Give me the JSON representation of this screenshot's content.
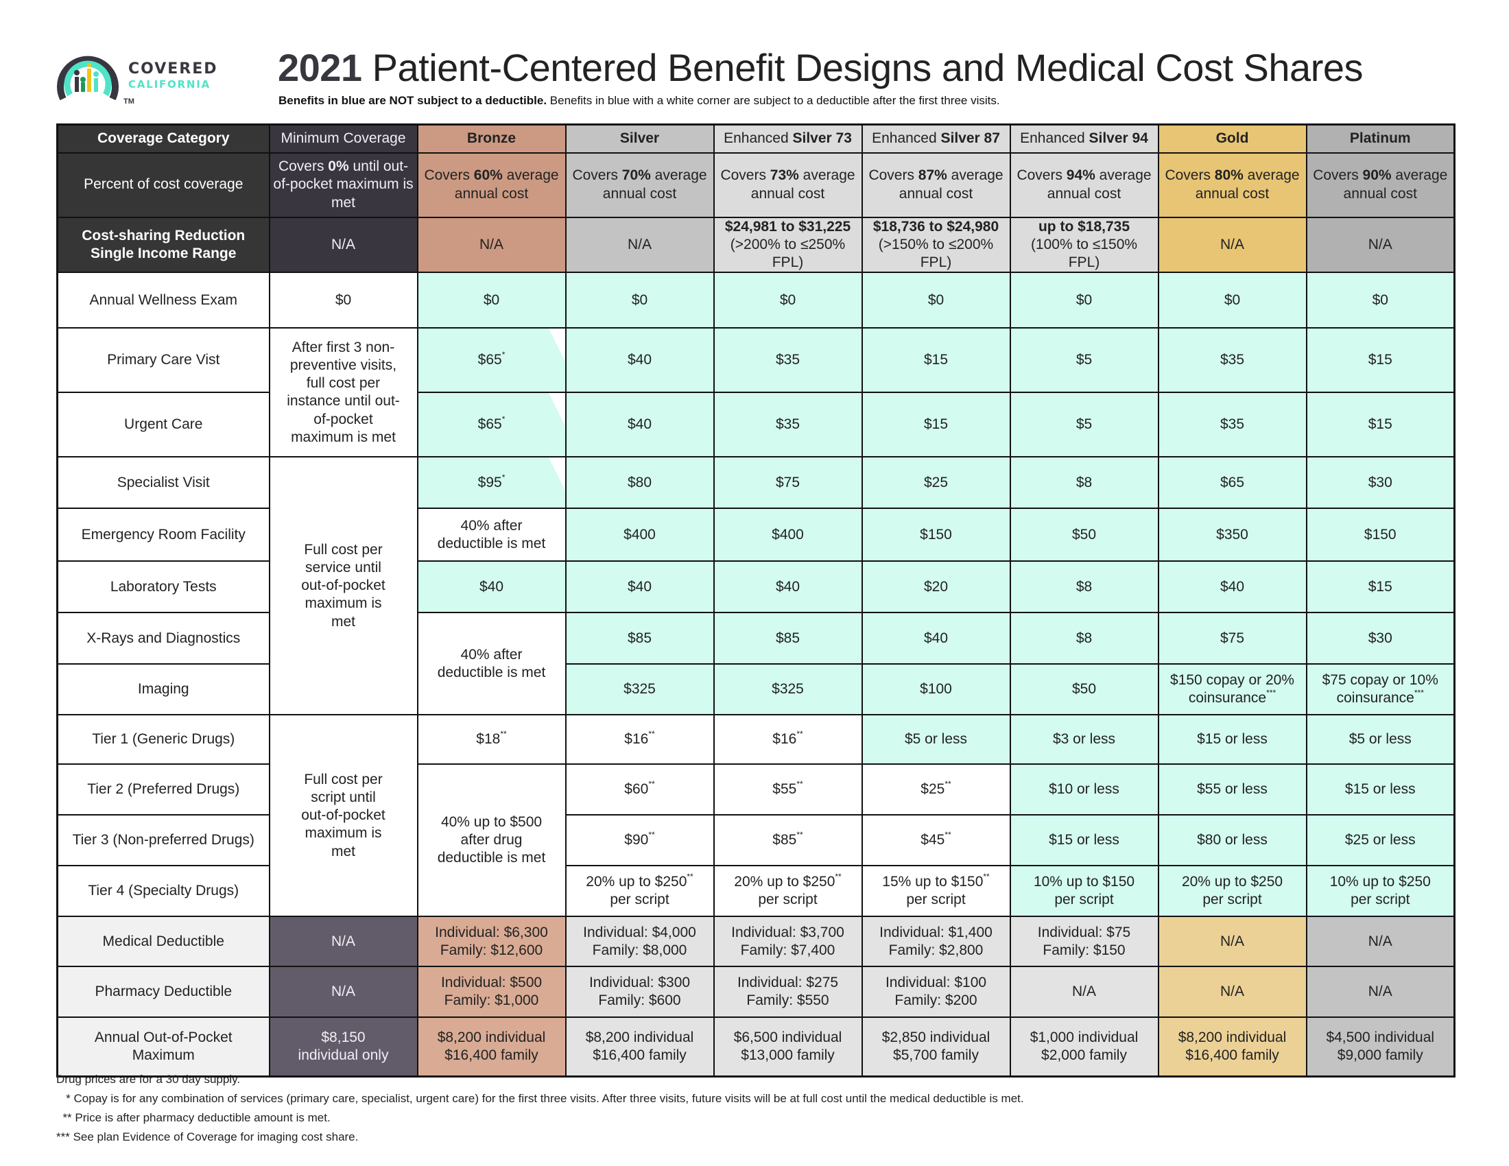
{
  "logo": {
    "line1": "COVERED",
    "line2": "CALIFORNIA",
    "tm": "TM"
  },
  "header": {
    "title_year": "2021",
    "title_rest": " Patient-Centered Benefit Designs and Medical Cost Shares",
    "subtitle_bold": "Benefits in blue are NOT subject to a deductible.",
    "subtitle_rest": " Benefits in blue with a white corner are subject to a deductible after the first three visits."
  },
  "columns": {
    "category": "Coverage Category",
    "minimum": "Minimum Coverage",
    "bronze": "Bronze",
    "silver": "Silver",
    "es73_pre": "Enhanced ",
    "es73_b": "Silver 73",
    "es87_pre": "Enhanced ",
    "es87_b": "Silver 87",
    "es94_pre": "Enhanced ",
    "es94_b": "Silver 94",
    "gold": "Gold",
    "platinum": "Platinum"
  },
  "colors": {
    "no_deductible_blue": "#d3fbf0",
    "bronze": "#cc9a82",
    "silver": "#c3c3c3",
    "enhanced_silver": "#dcdcdc",
    "gold": "#e8c574",
    "platinum": "#b1b1b1",
    "header_dark": "#363636",
    "min_coverage": "#3a3640"
  },
  "rows": {
    "percent": {
      "label": "Percent of cost coverage",
      "min": [
        "Covers ",
        "0%",
        " until out-of-pocket maximum is met"
      ],
      "bronze": [
        "Covers ",
        "60%",
        " average annual cost"
      ],
      "silver": [
        "Covers ",
        "70%",
        " average annual cost"
      ],
      "es73": [
        "Covers ",
        "73%",
        " average annual cost"
      ],
      "es87": [
        "Covers ",
        "87%",
        " average annual cost"
      ],
      "es94": [
        "Covers ",
        "94%",
        " average annual cost"
      ],
      "gold": [
        "Covers ",
        "80%",
        " average annual cost"
      ],
      "platinum": [
        "Covers ",
        "90%",
        " average annual cost"
      ]
    },
    "csr": {
      "label_1": "Cost-sharing Reduction",
      "label_2": "Single Income Range",
      "min": "N/A",
      "bronze": "N/A",
      "silver": "N/A",
      "es73_1": "$24,981 to $31,225",
      "es73_2": "(>200% to ≤250% FPL)",
      "es87_1": "$18,736 to $24,980",
      "es87_2": "(>150% to ≤200% FPL)",
      "es94_1": "up to $18,735",
      "es94_2": "(100% to ≤150% FPL)",
      "gold": "N/A",
      "platinum": "N/A"
    },
    "wellness": {
      "label": "Annual Wellness Exam",
      "values": [
        "$0",
        "$0",
        "$0",
        "$0",
        "$0",
        "$0",
        "$0",
        "$0"
      ]
    },
    "primary": {
      "label": "Primary Care Vist",
      "values": [
        "$65*",
        "$40",
        "$35",
        "$15",
        "$5",
        "$35",
        "$15"
      ]
    },
    "urgent": {
      "label": "Urgent Care",
      "values": [
        "$65*",
        "$40",
        "$35",
        "$15",
        "$5",
        "$35",
        "$15"
      ]
    },
    "visits_min": "After first 3 non-preventive visits, full cost per instance until out-of-pocket maximum is met",
    "specialist": {
      "label": "Specialist Visit",
      "values": [
        "$95*",
        "$80",
        "$75",
        "$25",
        "$8",
        "$65",
        "$30"
      ]
    },
    "er": {
      "label": "Emergency Room Facility",
      "values": [
        "40% after deductible is met",
        "$400",
        "$400",
        "$150",
        "$50",
        "$350",
        "$150"
      ]
    },
    "lab": {
      "label": "Laboratory Tests",
      "values": [
        "$40",
        "$40",
        "$40",
        "$20",
        "$8",
        "$40",
        "$15"
      ]
    },
    "xray": {
      "label": "X-Rays and Diagnostics",
      "values": [
        "$85",
        "$85",
        "$40",
        "$8",
        "$75",
        "$30"
      ]
    },
    "imaging": {
      "label": "Imaging",
      "values": [
        "$325",
        "$325",
        "$100",
        "$50",
        "$150 copay or 20% coinsurance***",
        "$75 copay or 10% coinsurance***"
      ]
    },
    "services_min": "Full cost per service until out-of-pocket maximum is met",
    "bronze_xray_imaging": "40% after deductible is met",
    "tier1": {
      "label": "Tier 1 (Generic Drugs)",
      "values": [
        "$18**",
        "$16**",
        "$16**",
        "$5 or less",
        "$3 or less",
        "$15 or less",
        "$5 or less"
      ]
    },
    "tier2": {
      "label": "Tier 2 (Preferred Drugs)",
      "values": [
        "$60**",
        "$55**",
        "$25**",
        "$10 or less",
        "$55 or less",
        "$15 or less"
      ]
    },
    "tier3": {
      "label": "Tier 3 (Non-preferred Drugs)",
      "values": [
        "$90**",
        "$85**",
        "$45**",
        "$15 or less",
        "$80 or less",
        "$25 or less"
      ]
    },
    "tier4": {
      "label": "Tier 4 (Specialty Drugs)",
      "values": [
        "20% up to $250** per script",
        "20% up to $250** per script",
        "15% up to $150** per script",
        "10% up to $150 per script",
        "20% up to $250 per script",
        "10% up to $250 per script"
      ]
    },
    "drugs_min": "Full cost per script until out-of-pocket maximum is met",
    "bronze_drugs": "40% up to $500 after drug deductible is met",
    "med_deductible": {
      "label": "Medical Deductible",
      "min": "N/A",
      "bronze": [
        "Individual: $6,300",
        "Family: $12,600"
      ],
      "silver": [
        "Individual: $4,000",
        "Family: $8,000"
      ],
      "es73": [
        "Individual: $3,700",
        "Family: $7,400"
      ],
      "es87": [
        "Individual: $1,400",
        "Family: $2,800"
      ],
      "es94": [
        "Individual: $75",
        "Family: $150"
      ],
      "gold": "N/A",
      "platinum": "N/A"
    },
    "rx_deductible": {
      "label": "Pharmacy Deductible",
      "min": "N/A",
      "bronze": [
        "Individual: $500",
        "Family: $1,000"
      ],
      "silver": [
        "Individual: $300",
        "Family: $600"
      ],
      "es73": [
        "Individual: $275",
        "Family: $550"
      ],
      "es87": [
        "Individual: $100",
        "Family: $200"
      ],
      "es94": "N/A",
      "gold": "N/A",
      "platinum": "N/A"
    },
    "oop_max": {
      "label_1": "Annual Out-of-Pocket",
      "label_2": "Maximum",
      "min": [
        "$8,150",
        "individual only"
      ],
      "bronze": [
        "$8,200 individual",
        "$16,400 family"
      ],
      "silver": [
        "$8,200 individual",
        "$16,400 family"
      ],
      "es73": [
        "$6,500 individual",
        "$13,000 family"
      ],
      "es87": [
        "$2,850 individual",
        "$5,700 family"
      ],
      "es94": [
        "$1,000 individual",
        "$2,000 family"
      ],
      "gold": [
        "$8,200 individual",
        "$16,400 family"
      ],
      "platinum": [
        "$4,500 individual",
        "$9,000 family"
      ]
    }
  },
  "footnotes": [
    "Drug prices are for a 30 day supply.",
    "   * Copay is for any combination of services (primary care, specialist, urgent care) for the first three visits. After three visits, future visits will be at full cost until the medical deductible is met.",
    "  ** Price is after pharmacy deductible amount is met.",
    "*** See plan Evidence of Coverage for imaging cost share."
  ]
}
